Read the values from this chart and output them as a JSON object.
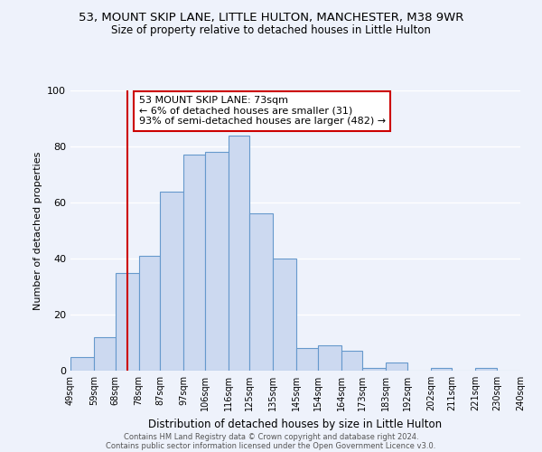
{
  "title1": "53, MOUNT SKIP LANE, LITTLE HULTON, MANCHESTER, M38 9WR",
  "title2": "Size of property relative to detached houses in Little Hulton",
  "xlabel": "Distribution of detached houses by size in Little Hulton",
  "ylabel": "Number of detached properties",
  "bin_labels": [
    "49sqm",
    "59sqm",
    "68sqm",
    "78sqm",
    "87sqm",
    "97sqm",
    "106sqm",
    "116sqm",
    "125sqm",
    "135sqm",
    "145sqm",
    "154sqm",
    "164sqm",
    "173sqm",
    "183sqm",
    "192sqm",
    "202sqm",
    "211sqm",
    "221sqm",
    "230sqm",
    "240sqm"
  ],
  "bin_edges": [
    49,
    59,
    68,
    78,
    87,
    97,
    106,
    116,
    125,
    135,
    145,
    154,
    164,
    173,
    183,
    192,
    202,
    211,
    221,
    230,
    240
  ],
  "bar_heights": [
    5,
    12,
    35,
    41,
    64,
    77,
    78,
    84,
    56,
    40,
    8,
    9,
    7,
    1,
    3,
    0,
    1,
    0,
    1,
    0
  ],
  "bar_color": "#ccd9f0",
  "bar_edge_color": "#6699cc",
  "property_line_x": 73,
  "property_line_color": "#cc0000",
  "annotation_text": "53 MOUNT SKIP LANE: 73sqm\n← 6% of detached houses are smaller (31)\n93% of semi-detached houses are larger (482) →",
  "annotation_box_edgecolor": "#cc0000",
  "ylim": [
    0,
    100
  ],
  "yticks": [
    0,
    20,
    40,
    60,
    80,
    100
  ],
  "footer1": "Contains HM Land Registry data © Crown copyright and database right 2024.",
  "footer2": "Contains public sector information licensed under the Open Government Licence v3.0.",
  "background_color": "#eef2fb"
}
